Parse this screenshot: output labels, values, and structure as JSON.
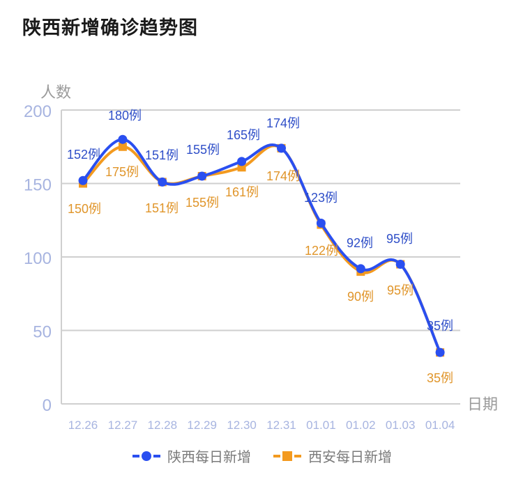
{
  "title": "陕西新增确诊趋势图",
  "chart_data": {
    "type": "line",
    "title": "陕西新增确诊趋势图",
    "xlabel": "日期",
    "ylabel": "人数",
    "ylim": [
      0,
      200
    ],
    "yticks": [
      0,
      50,
      100,
      150,
      200
    ],
    "grid": true,
    "legend_position": "bottom",
    "categories": [
      "12.26",
      "12.27",
      "12.28",
      "12.29",
      "12.30",
      "12.31",
      "01.01",
      "01.02",
      "01.03",
      "01.04"
    ],
    "series": [
      {
        "name": "陕西每日新增",
        "color": "#2a4ff0",
        "marker": "circle",
        "values": [
          152,
          180,
          151,
          155,
          165,
          174,
          123,
          92,
          95,
          35
        ],
        "labels": [
          "152例",
          "180例",
          "151例",
          "155例",
          "165例",
          "174例",
          "123例",
          "92例",
          "95例",
          "35例"
        ]
      },
      {
        "name": "西安每日新增",
        "color": "#f39a1f",
        "marker": "square",
        "values": [
          150,
          175,
          151,
          155,
          161,
          174,
          122,
          90,
          95,
          35
        ],
        "labels": [
          "150例",
          "175例",
          "151例",
          "155例",
          "161例",
          "174例",
          "122例",
          "90例",
          "95例",
          "35例"
        ]
      }
    ]
  },
  "colors": {
    "axis_tick": "#a7b4e0",
    "axis_title": "#9a9a9a",
    "grid": "#cfcfcf",
    "shaanxi": "#2a4ff0",
    "shaanxi_label": "#2f4fc8",
    "xian": "#f39a1f",
    "xian_label": "#e0952a"
  }
}
